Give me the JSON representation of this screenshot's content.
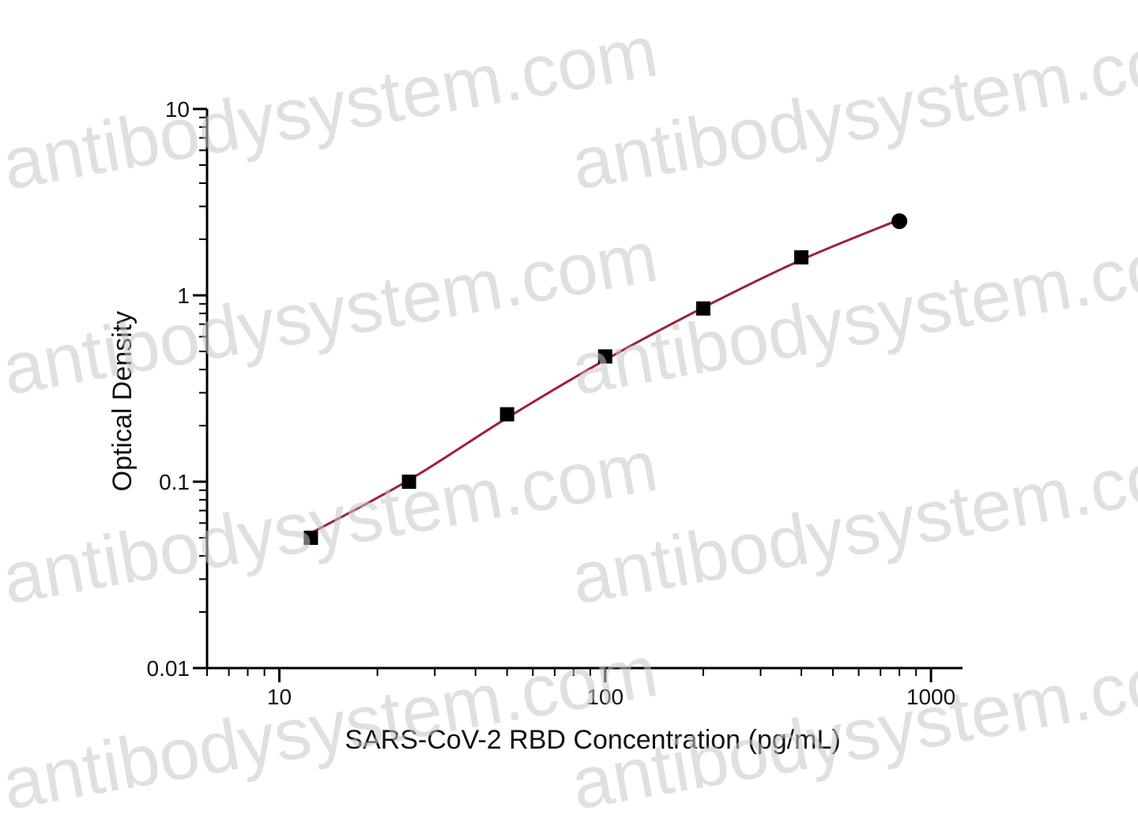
{
  "chart_data": {
    "type": "scatter",
    "xlabel": "SARS-CoV-2 RBD Concentration (pg/mL)",
    "ylabel": "Optical Density",
    "x_scale": "log",
    "y_scale": "log",
    "xlim": [
      6,
      1250
    ],
    "ylim": [
      0.01,
      10
    ],
    "x_ticks": [
      10,
      100,
      1000
    ],
    "x_tick_labels": [
      "10",
      "100",
      "1000"
    ],
    "y_ticks": [
      0.01,
      0.1,
      1,
      10
    ],
    "y_tick_labels": [
      "0.01",
      "0.1",
      "1",
      "10"
    ],
    "grid": false,
    "series": [
      {
        "marker": "square",
        "color": "#000000",
        "x": [
          12.5,
          25,
          50,
          100,
          200,
          400,
          800
        ],
        "y": [
          0.05,
          0.1,
          0.23,
          0.47,
          0.85,
          1.6,
          2.5
        ]
      }
    ],
    "fit_curve": {
      "color": "#a0203a",
      "x": [
        12.5,
        25,
        50,
        100,
        200,
        400,
        800
      ],
      "y": [
        0.053,
        0.102,
        0.22,
        0.45,
        0.86,
        1.55,
        2.55
      ]
    }
  },
  "watermark": {
    "text": "antibodysystem.com",
    "color": "#c8c8c8"
  }
}
